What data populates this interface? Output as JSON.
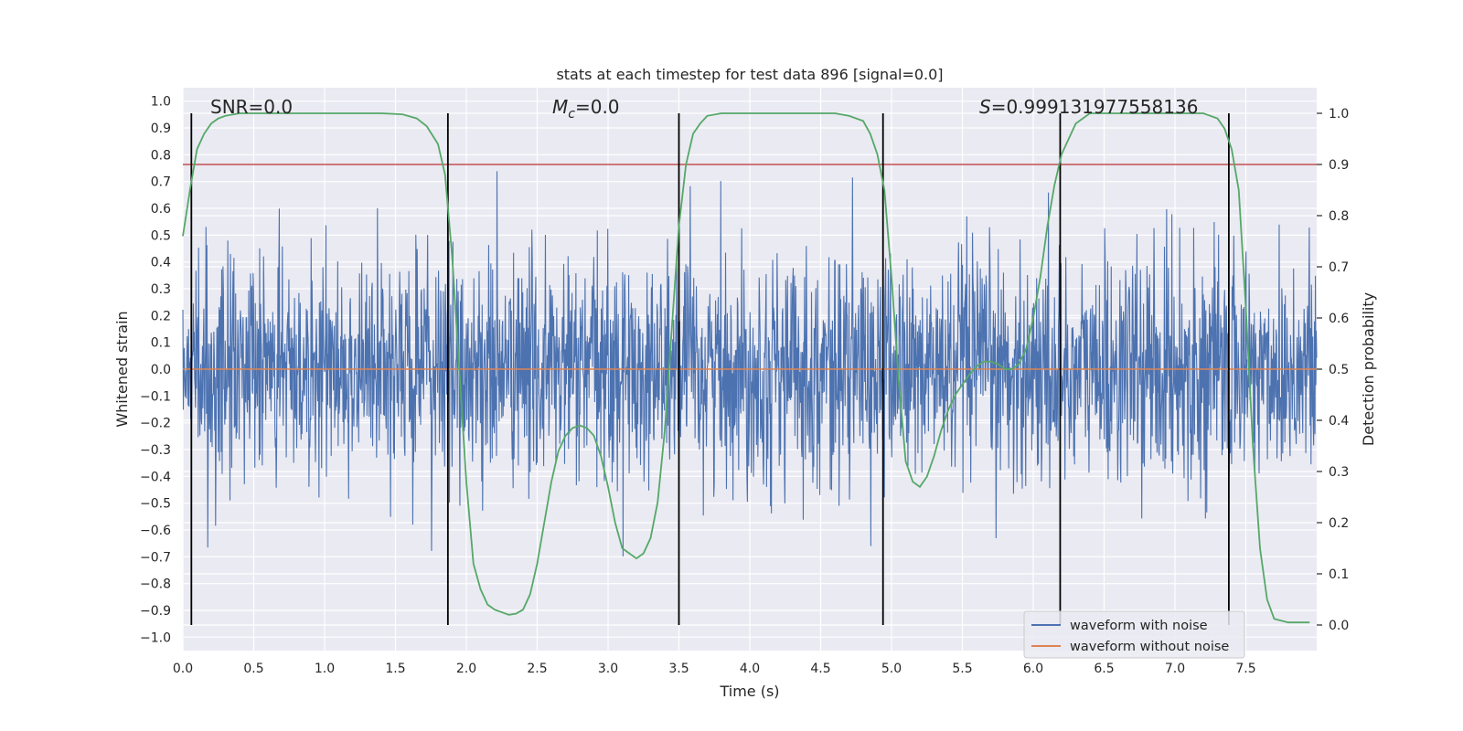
{
  "chart_data": {
    "type": "line",
    "title": "stats at each timestep for test data 896 [signal=0.0]",
    "xlabel": "Time (s)",
    "ylabel": "Whitened strain",
    "y2label": "Detection probability",
    "xlim": [
      0.0,
      8.0
    ],
    "ylim": [
      -1.05,
      1.05
    ],
    "y2lim": [
      -0.05,
      1.05
    ],
    "grid": true,
    "legend_placement": "lower-right",
    "x_ticks": [
      0.0,
      0.5,
      1.0,
      1.5,
      2.0,
      2.5,
      3.0,
      3.5,
      4.0,
      4.5,
      5.0,
      5.5,
      6.0,
      6.5,
      7.0,
      7.5
    ],
    "x_tick_labels": [
      "0.0",
      "0.5",
      "1.0",
      "1.5",
      "2.0",
      "2.5",
      "3.0",
      "3.5",
      "4.0",
      "4.5",
      "5.0",
      "5.5",
      "6.0",
      "6.5",
      "7.0",
      "7.5"
    ],
    "y_ticks": [
      1.0,
      0.9,
      0.8,
      0.7,
      0.6,
      0.5,
      0.4,
      0.3,
      0.2,
      0.1,
      0.0,
      -0.1,
      -0.2,
      -0.3,
      -0.4,
      -0.5,
      -0.6,
      -0.7,
      -0.8,
      -0.9,
      -1.0
    ],
    "y_tick_labels": [
      "1.0",
      "0.9",
      "0.8",
      "0.7",
      "0.6",
      "0.5",
      "0.4",
      "0.3",
      "0.2",
      "0.1",
      "0.0",
      "−0.1",
      "−0.2",
      "−0.3",
      "−0.4",
      "−0.5",
      "−0.6",
      "−0.7",
      "−0.8",
      "−0.9",
      "−1.0"
    ],
    "y2_ticks": [
      1.0,
      0.9,
      0.8,
      0.7,
      0.6,
      0.5,
      0.4,
      0.3,
      0.2,
      0.1,
      0.0
    ],
    "y2_tick_labels": [
      "1.0",
      "0.9",
      "0.8",
      "0.7",
      "0.6",
      "0.5",
      "0.4",
      "0.3",
      "0.2",
      "0.1",
      "0.0"
    ],
    "annotations": {
      "snr": "SNR=0.0",
      "mc_symbol": "M",
      "mc_subscript": "c",
      "mc_value": "=0.0",
      "s_symbol": "S",
      "s_value": "=0.999131977558136"
    },
    "threshold": {
      "value": 0.9,
      "axis": "right",
      "color": "#c44e52"
    },
    "vertical_markers_x": [
      0.06,
      1.87,
      3.5,
      4.94,
      6.19,
      7.38
    ],
    "series": [
      {
        "name": "waveform with noise",
        "color": "#4c72b0",
        "kind": "noise",
        "duration_s": 8.0,
        "envelope_std": 0.21,
        "peak_max": 1.0,
        "peak_min": -0.94
      },
      {
        "name": "waveform without noise",
        "color": "#dd8452",
        "x": [
          0.0,
          8.0
        ],
        "y": [
          0.0,
          0.0
        ]
      },
      {
        "name": "detection probability",
        "axis": "right",
        "color": "#55a868",
        "x": [
          0.0,
          0.05,
          0.1,
          0.15,
          0.2,
          0.25,
          0.3,
          0.4,
          0.6,
          1.0,
          1.4,
          1.55,
          1.65,
          1.72,
          1.8,
          1.85,
          1.9,
          1.95,
          2.0,
          2.05,
          2.1,
          2.15,
          2.2,
          2.3,
          2.35,
          2.4,
          2.45,
          2.5,
          2.55,
          2.6,
          2.65,
          2.7,
          2.75,
          2.8,
          2.85,
          2.9,
          2.95,
          3.0,
          3.05,
          3.1,
          3.15,
          3.2,
          3.25,
          3.3,
          3.35,
          3.4,
          3.45,
          3.5,
          3.55,
          3.6,
          3.65,
          3.7,
          3.8,
          4.2,
          4.6,
          4.7,
          4.8,
          4.85,
          4.9,
          4.95,
          5.0,
          5.05,
          5.1,
          5.15,
          5.2,
          5.25,
          5.3,
          5.35,
          5.4,
          5.45,
          5.5,
          5.55,
          5.6,
          5.65,
          5.7,
          5.75,
          5.8,
          5.85,
          5.9,
          5.95,
          6.0,
          6.05,
          6.1,
          6.15,
          6.2,
          6.25,
          6.3,
          6.35,
          6.4,
          6.5,
          6.8,
          7.2,
          7.3,
          7.35,
          7.4,
          7.45,
          7.5,
          7.55,
          7.6,
          7.65,
          7.7,
          7.8,
          7.95
        ],
        "y": [
          0.76,
          0.85,
          0.93,
          0.96,
          0.98,
          0.99,
          0.995,
          1.0,
          1.0,
          1.0,
          1.0,
          0.998,
          0.99,
          0.975,
          0.94,
          0.88,
          0.72,
          0.5,
          0.28,
          0.12,
          0.07,
          0.04,
          0.03,
          0.02,
          0.022,
          0.03,
          0.06,
          0.12,
          0.2,
          0.28,
          0.34,
          0.37,
          0.385,
          0.39,
          0.385,
          0.37,
          0.33,
          0.27,
          0.2,
          0.15,
          0.14,
          0.13,
          0.14,
          0.17,
          0.24,
          0.38,
          0.58,
          0.78,
          0.9,
          0.96,
          0.98,
          0.995,
          1.0,
          1.0,
          1.0,
          0.995,
          0.985,
          0.96,
          0.92,
          0.85,
          0.68,
          0.48,
          0.32,
          0.28,
          0.27,
          0.29,
          0.33,
          0.38,
          0.42,
          0.45,
          0.47,
          0.49,
          0.505,
          0.515,
          0.515,
          0.51,
          0.5,
          0.5,
          0.51,
          0.54,
          0.6,
          0.68,
          0.78,
          0.86,
          0.92,
          0.95,
          0.98,
          0.99,
          1.0,
          1.0,
          1.0,
          1.0,
          0.99,
          0.97,
          0.93,
          0.85,
          0.62,
          0.35,
          0.15,
          0.05,
          0.012,
          0.005,
          0.005
        ]
      }
    ]
  }
}
